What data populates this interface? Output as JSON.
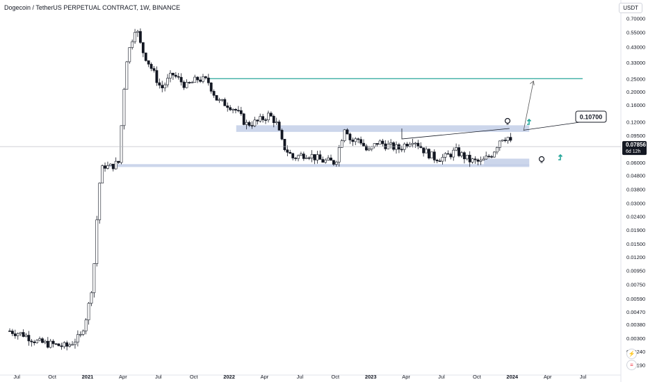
{
  "header": {
    "title": "Dogecoin / TetherUS PERPETUAL CONTRACT, 1W, BINANCE",
    "currency": "USDT"
  },
  "price_tag": {
    "value": "0.07856",
    "countdown": "6d 12h",
    "color": "#131722"
  },
  "annotation": {
    "label": "0.10700"
  },
  "colors": {
    "zone": "#c3cfe8",
    "target_line": "#26a69a",
    "arrow": "#26a69a",
    "candle_up": "#ffffff",
    "candle_down": "#131722"
  },
  "icons": [
    "lightbulb-icon",
    "teal-up-arrow-icon",
    "lightning-icon",
    "us-flag-icon"
  ],
  "chart_data": {
    "type": "candlestick",
    "title": "Dogecoin / TetherUS PERPETUAL CONTRACT, 1W, BINANCE",
    "y_scale": "log",
    "ylim": [
      0.0017,
      0.8
    ],
    "y_ticks": [
      "0.70000",
      "0.55000",
      "0.43000",
      "0.33000",
      "0.25000",
      "0.20000",
      "0.16000",
      "0.12000",
      "0.09500",
      "0.07500",
      "0.06000",
      "0.04800",
      "0.03800",
      "0.03000",
      "0.02400",
      "0.01900",
      "0.01500",
      "0.01200",
      "0.00950",
      "0.00750",
      "0.00590",
      "0.00470",
      "0.00380",
      "0.00300",
      "0.00240",
      "0.00190"
    ],
    "x_ticks": [
      "Jul",
      "Oct",
      "2021",
      "Apr",
      "Jul",
      "Oct",
      "2022",
      "Apr",
      "Jul",
      "Oct",
      "2023",
      "Apr",
      "Jul",
      "Oct",
      "2024",
      "Apr",
      "Jul"
    ],
    "x_range_years": [
      2020.45,
      2024.62
    ],
    "keypoints": [
      [
        2020.45,
        0.0034
      ],
      [
        2020.55,
        0.0032
      ],
      [
        2020.65,
        0.0028
      ],
      [
        2020.75,
        0.0027
      ],
      [
        2020.85,
        0.0026
      ],
      [
        2020.95,
        0.0031
      ],
      [
        2021.0,
        0.0047
      ],
      [
        2021.04,
        0.0085
      ],
      [
        2021.08,
        0.04
      ],
      [
        2021.11,
        0.058
      ],
      [
        2021.15,
        0.055
      ],
      [
        2021.22,
        0.06
      ],
      [
        2021.27,
        0.33
      ],
      [
        2021.34,
        0.62
      ],
      [
        2021.38,
        0.42
      ],
      [
        2021.45,
        0.3
      ],
      [
        2021.52,
        0.21
      ],
      [
        2021.6,
        0.27
      ],
      [
        2021.7,
        0.22
      ],
      [
        2021.78,
        0.25
      ],
      [
        2021.85,
        0.24
      ],
      [
        2021.92,
        0.17
      ],
      [
        2022.0,
        0.16
      ],
      [
        2022.05,
        0.145
      ],
      [
        2022.12,
        0.115
      ],
      [
        2022.2,
        0.12
      ],
      [
        2022.28,
        0.135
      ],
      [
        2022.33,
        0.12
      ],
      [
        2022.38,
        0.08
      ],
      [
        2022.45,
        0.065
      ],
      [
        2022.55,
        0.07
      ],
      [
        2022.65,
        0.062
      ],
      [
        2022.75,
        0.06
      ],
      [
        2022.82,
        0.115
      ],
      [
        2022.86,
        0.085
      ],
      [
        2022.92,
        0.09
      ],
      [
        2022.98,
        0.071
      ],
      [
        2023.05,
        0.085
      ],
      [
        2023.12,
        0.08
      ],
      [
        2023.2,
        0.076
      ],
      [
        2023.3,
        0.09
      ],
      [
        2023.38,
        0.073
      ],
      [
        2023.45,
        0.065
      ],
      [
        2023.52,
        0.065
      ],
      [
        2023.6,
        0.073
      ],
      [
        2023.7,
        0.062
      ],
      [
        2023.78,
        0.06
      ],
      [
        2023.86,
        0.07
      ],
      [
        2023.92,
        0.092
      ],
      [
        2023.97,
        0.092
      ],
      [
        2024.0,
        0.0786
      ]
    ],
    "horizontal_line": 0.25,
    "zones": [
      {
        "from": 2022.05,
        "to": 2024.12,
        "low": 0.101,
        "high": 0.113
      },
      {
        "from": 2021.15,
        "to": 2024.12,
        "low": 0.0555,
        "high": 0.0583
      },
      {
        "from": 2023.8,
        "to": 2024.12,
        "low": 0.0565,
        "high": 0.064
      }
    ],
    "resistance_path": [
      [
        2023.22,
        0.107
      ],
      [
        2023.22,
        0.0895
      ],
      [
        2023.98,
        0.107
      ]
    ],
    "projection": [
      [
        2024.08,
        0.103
      ],
      [
        2024.15,
        0.24
      ]
    ],
    "last_price": 0.07856
  }
}
